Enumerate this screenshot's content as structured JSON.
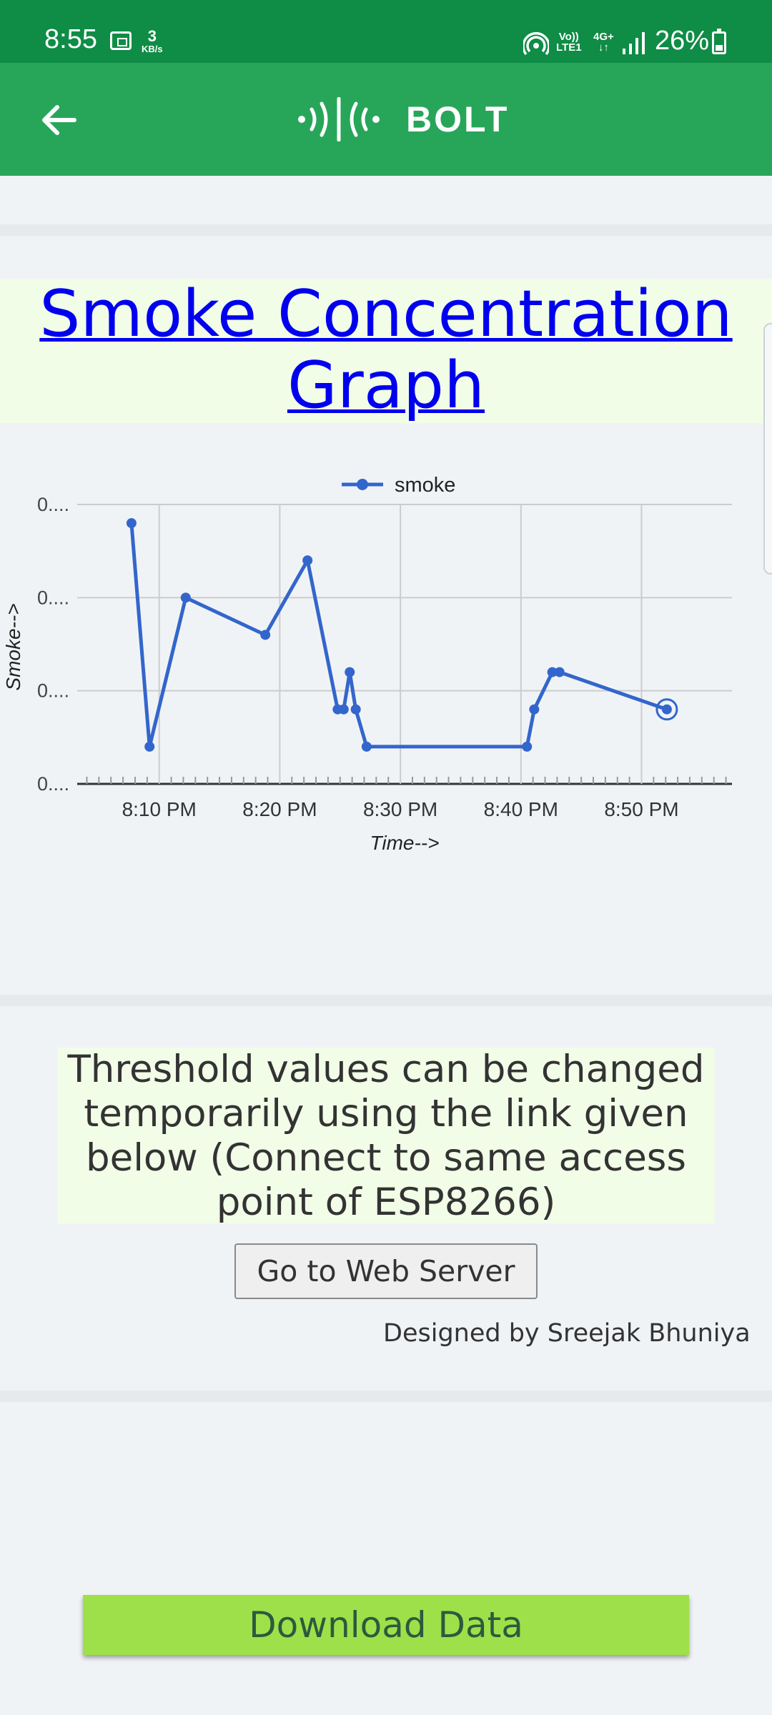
{
  "status_bar": {
    "time": "8:55",
    "net_speed_value": "3",
    "net_speed_unit": "KB/s",
    "volte_label": "Vo))\nLTE1",
    "network_type": "4G+\n↓↑",
    "battery_percent": "26%"
  },
  "app_bar": {
    "logo_text": "BOLT"
  },
  "page": {
    "title": "Smoke Concentration Graph",
    "info_text": "Threshold values can be changed temporarily using the link given below (Connect to same access point of ESP8266)",
    "web_server_button": "Go to Web Server",
    "designed_by": "Designed by Sreejak Bhuniya",
    "download_button": "Download Data"
  },
  "chart_data": {
    "type": "line",
    "xlabel": "Time-->",
    "ylabel": "Smoke-->",
    "x_ticks": [
      "8:10 PM",
      "8:20 PM",
      "8:30 PM",
      "8:40 PM",
      "8:50 PM"
    ],
    "y_ticks": [
      "0....",
      "0....",
      "0....",
      "0...."
    ],
    "xlim_minutes_after_8pm": [
      3.2,
      57.5
    ],
    "ylim_levels": [
      0,
      3
    ],
    "grid": true,
    "legend_position": "top",
    "series": [
      {
        "name": "smoke",
        "color": "#3366cc",
        "x_minutes_after_8pm": [
          7.7,
          9.2,
          12.2,
          18.8,
          22.3,
          24.8,
          25.3,
          25.8,
          26.3,
          27.2,
          40.5,
          41.1,
          42.6,
          43.2,
          52.1
        ],
        "y_levels": [
          2.8,
          0.4,
          2.0,
          1.6,
          2.4,
          0.8,
          0.8,
          1.2,
          0.8,
          0.4,
          0.4,
          0.8,
          1.2,
          1.2,
          0.8
        ]
      }
    ]
  },
  "colors": {
    "status_bar": "#0f8c46",
    "app_bar": "#27a65a",
    "title_link": "#0000ee",
    "panel_bg": "#f2fde8",
    "download_button": "#9de04a",
    "series_line": "#3366cc"
  }
}
